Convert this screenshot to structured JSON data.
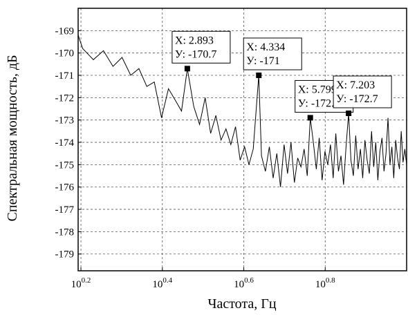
{
  "chart_data": {
    "type": "line",
    "x_label": "Частота, Гц",
    "y_label": "Спектральная мощность, дБ",
    "log_x": true,
    "grid": true,
    "xlim": [
      1.56,
      10
    ],
    "ylim": [
      -179.75,
      -168.0
    ],
    "xticks": [
      {
        "value": 1.5849,
        "label": "10^0.2"
      },
      {
        "value": 2.5119,
        "label": "10^0.4"
      },
      {
        "value": 3.9811,
        "label": "10^0.6"
      },
      {
        "value": 6.3096,
        "label": "10^0.8"
      }
    ],
    "yticks": [
      -169,
      -170,
      -171,
      -172,
      -173,
      -174,
      -175,
      -176,
      -177,
      -178,
      -179
    ],
    "series": [
      {
        "color": "#000000",
        "x": [
          1.56,
          1.6,
          1.7,
          1.8,
          1.9,
          2.0,
          2.1,
          2.2,
          2.3,
          2.4,
          2.5,
          2.6,
          2.7,
          2.8,
          2.893,
          3.0,
          3.1,
          3.2,
          3.3,
          3.4,
          3.5,
          3.6,
          3.7,
          3.8,
          3.9,
          4.0,
          4.1,
          4.2,
          4.334,
          4.4,
          4.5,
          4.6,
          4.7,
          4.8,
          4.9,
          5.0,
          5.1,
          5.2,
          5.3,
          5.4,
          5.5,
          5.6,
          5.7,
          5.799,
          5.9,
          6.0,
          6.1,
          6.2,
          6.3,
          6.4,
          6.5,
          6.6,
          6.7,
          6.8,
          6.9,
          7.0,
          7.1,
          7.203,
          7.3,
          7.4,
          7.5,
          7.6,
          7.7,
          7.8,
          7.9,
          8.0,
          8.1,
          8.2,
          8.3,
          8.4,
          8.5,
          8.6,
          8.7,
          8.8,
          8.9,
          9.0,
          9.1,
          9.2,
          9.3,
          9.4,
          9.5,
          9.6,
          9.7,
          9.8,
          9.9,
          10.0
        ],
        "values": [
          -169.2,
          -169.8,
          -170.3,
          -169.9,
          -170.6,
          -170.2,
          -171.0,
          -170.7,
          -171.5,
          -171.3,
          -172.9,
          -171.6,
          -172.1,
          -172.6,
          -170.7,
          -172.4,
          -173.2,
          -172.0,
          -173.6,
          -172.8,
          -173.9,
          -173.4,
          -174.1,
          -173.3,
          -174.8,
          -174.2,
          -175.0,
          -174.3,
          -171.0,
          -174.6,
          -175.3,
          -174.2,
          -175.6,
          -174.5,
          -176.0,
          -174.1,
          -175.4,
          -174.0,
          -175.8,
          -174.7,
          -175.1,
          -174.3,
          -175.5,
          -172.9,
          -174.0,
          -175.2,
          -173.8,
          -175.7,
          -174.4,
          -175.0,
          -174.1,
          -175.6,
          -173.6,
          -175.3,
          -174.6,
          -175.9,
          -174.2,
          -172.7,
          -174.8,
          -175.5,
          -173.7,
          -175.2,
          -174.3,
          -175.6,
          -173.9,
          -174.8,
          -175.4,
          -173.5,
          -175.1,
          -174.0,
          -175.7,
          -174.4,
          -173.8,
          -175.3,
          -174.5,
          -172.9,
          -175.0,
          -174.2,
          -175.6,
          -173.9,
          -174.7,
          -175.2,
          -173.5,
          -174.9,
          -174.3,
          -175.0
        ]
      }
    ],
    "annotations": [
      {
        "x": 2.893,
        "y": -170.7,
        "lines": [
          "X: 2.893",
          "У: -170.7"
        ]
      },
      {
        "x": 4.334,
        "y": -171,
        "lines": [
          "X: 4.334",
          "У: -171"
        ]
      },
      {
        "x": 5.799,
        "y": -172.9,
        "lines": [
          "X: 5.799",
          "У: -172.9"
        ]
      },
      {
        "x": 7.203,
        "y": -172.7,
        "lines": [
          "X: 7.203",
          "У: -172.7"
        ]
      }
    ]
  }
}
